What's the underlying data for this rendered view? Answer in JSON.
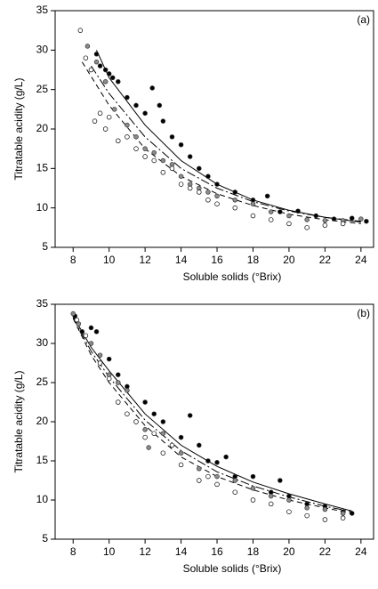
{
  "chart_data": [
    {
      "type": "scatter",
      "panel_label": "(a)",
      "x_label": "Soluble solids (°Brix)",
      "y_label": "Titratable acidity (g/L)",
      "xlim": [
        7,
        24.7
      ],
      "xticks": [
        8,
        10,
        12,
        14,
        16,
        18,
        20,
        22,
        24
      ],
      "ylim": [
        5,
        35
      ],
      "yticks": [
        5,
        10,
        15,
        20,
        25,
        30,
        35
      ],
      "series": [
        {
          "marker": "filled",
          "color": "#000000",
          "x": [
            9.3,
            9.5,
            9.8,
            10,
            10.2,
            10.5,
            11,
            11.5,
            12,
            12.4,
            12.8,
            13,
            13.5,
            14,
            14.5,
            15,
            15.5,
            16,
            17,
            18,
            18.8,
            19.5,
            20.5,
            21.5,
            22.5,
            23.5,
            24.3
          ],
          "y": [
            29.5,
            28,
            27.5,
            27,
            26.5,
            26,
            24,
            23,
            22,
            25.2,
            23,
            21,
            19,
            18,
            16.5,
            15,
            14,
            13,
            12,
            11,
            11.5,
            9.5,
            9.6,
            9,
            8.6,
            8.7,
            8.3
          ]
        },
        {
          "marker": "filled",
          "color": "#8c8c8c",
          "x": [
            8.8,
            9.3,
            9.8,
            10.3,
            11,
            11.5,
            12,
            12.5,
            13,
            13.5,
            14,
            14.5,
            15,
            15.5,
            16,
            17,
            18,
            19,
            20,
            21,
            22,
            23,
            24
          ],
          "y": [
            30.5,
            28.5,
            26,
            22.5,
            20.5,
            19,
            17.5,
            17,
            16,
            15.5,
            14,
            13,
            12.5,
            12,
            11.5,
            11,
            10.5,
            9.5,
            9,
            8.5,
            8.4,
            8.4,
            8.6
          ]
        },
        {
          "marker": "open",
          "color": "#000000",
          "x": [
            8.4,
            8.7,
            9,
            9.2,
            9.5,
            9.8,
            10,
            10.5,
            11,
            11.5,
            12,
            12.5,
            13,
            13.5,
            14,
            14.5,
            15,
            15.5,
            16,
            17,
            18,
            19,
            20,
            21,
            22,
            23
          ],
          "y": [
            32.5,
            29,
            27.5,
            21,
            22,
            20,
            21.5,
            18.5,
            19,
            17.5,
            16.5,
            16,
            14.5,
            15,
            13,
            12.5,
            12,
            11,
            10.5,
            10,
            9,
            8.5,
            8,
            7.5,
            7.8,
            8
          ]
        },
        {
          "line_style": "solid",
          "color": "#000000",
          "x": [
            9.3,
            10,
            12,
            14,
            16,
            18,
            20,
            22,
            24
          ],
          "y": [
            30,
            26.5,
            20.5,
            16,
            13,
            11,
            9.7,
            8.8,
            8.2
          ]
        },
        {
          "line_style": "dashed",
          "color": "#000000",
          "x": [
            8.5,
            10,
            12,
            14,
            16,
            18,
            20,
            22,
            24
          ],
          "y": [
            28.5,
            23,
            17.5,
            14,
            11.8,
            10.3,
            9.2,
            8.5,
            8.0
          ]
        },
        {
          "line_style": "dashdot",
          "color": "#000000",
          "x": [
            9,
            10,
            12,
            14,
            16,
            18,
            20,
            22,
            24
          ],
          "y": [
            28,
            24.5,
            19,
            15,
            12.5,
            10.8,
            9.6,
            8.8,
            8.3
          ]
        }
      ]
    },
    {
      "type": "scatter",
      "panel_label": "(b)",
      "x_label": "Soluble solids (°Brix)",
      "y_label": "Titratable acidity (g/L)",
      "xlim": [
        7,
        24.7
      ],
      "xticks": [
        8,
        10,
        12,
        14,
        16,
        18,
        20,
        22,
        24
      ],
      "ylim": [
        5,
        35
      ],
      "yticks": [
        5,
        10,
        15,
        20,
        25,
        30,
        35
      ],
      "series": [
        {
          "marker": "filled",
          "color": "#000000",
          "x": [
            8.1,
            8.5,
            9,
            9.3,
            10,
            10.5,
            11,
            12,
            12.5,
            13,
            14,
            14.5,
            15,
            15.5,
            16,
            16.5,
            17,
            18,
            19,
            19.5,
            20,
            21,
            22,
            23,
            23.5
          ],
          "y": [
            33.5,
            31.5,
            32,
            31.5,
            28,
            26,
            24.5,
            22.5,
            21,
            20,
            18,
            20.8,
            17,
            15,
            14.8,
            15.5,
            13,
            13,
            11,
            12.5,
            10.5,
            9.5,
            9.2,
            8.5,
            8.3
          ]
        },
        {
          "marker": "filled",
          "color": "#8c8c8c",
          "x": [
            8,
            8.3,
            9,
            9.5,
            10,
            10.5,
            11,
            12,
            12.2,
            13,
            14,
            15,
            16,
            17,
            18,
            19,
            20,
            21,
            22,
            23
          ],
          "y": [
            33.8,
            32.5,
            30,
            28.5,
            26,
            25,
            24,
            19,
            16.7,
            18.5,
            16,
            14,
            13,
            12.5,
            11.5,
            10.5,
            10,
            9,
            8.8,
            8.3
          ]
        },
        {
          "marker": "open",
          "color": "#000000",
          "x": [
            8.2,
            8.7,
            9.5,
            10,
            10.5,
            11,
            11.5,
            12,
            12.5,
            13,
            13.5,
            14,
            15,
            15.5,
            16,
            17,
            18,
            19,
            20,
            21,
            22,
            23
          ],
          "y": [
            33,
            31,
            27.5,
            25.5,
            22.5,
            21,
            20,
            18,
            18.5,
            16,
            17,
            14.5,
            12.5,
            13,
            12,
            11,
            10,
            9.5,
            8.5,
            8,
            7.5,
            7.7
          ]
        },
        {
          "line_style": "solid",
          "color": "#000000",
          "x": [
            8,
            9,
            10,
            12,
            14,
            16,
            18,
            20,
            22,
            23.5
          ],
          "y": [
            33.5,
            29.5,
            26.5,
            21,
            17,
            14.3,
            12.3,
            10.8,
            9.5,
            8.6
          ]
        },
        {
          "line_style": "dashed",
          "color": "#000000",
          "x": [
            8,
            9,
            10,
            12,
            14,
            16,
            18,
            20,
            22,
            23.5
          ],
          "y": [
            33.2,
            28.5,
            25,
            19.5,
            15.5,
            13,
            11.3,
            10,
            9,
            8.3
          ]
        },
        {
          "line_style": "dashdot",
          "color": "#000000",
          "x": [
            8,
            9,
            10,
            12,
            14,
            16,
            18,
            20,
            22,
            23.5
          ],
          "y": [
            33.3,
            29,
            25.7,
            20.2,
            16.3,
            13.6,
            11.8,
            10.4,
            9.2,
            8.5
          ]
        }
      ]
    }
  ]
}
